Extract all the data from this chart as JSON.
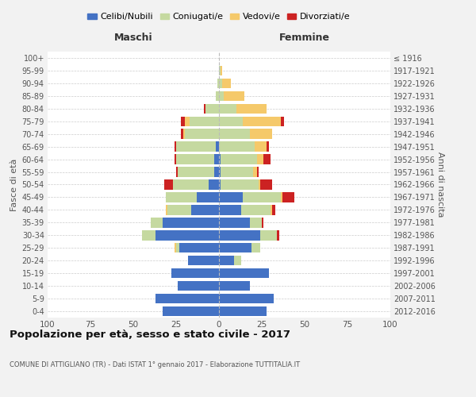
{
  "age_groups": [
    "0-4",
    "5-9",
    "10-14",
    "15-19",
    "20-24",
    "25-29",
    "30-34",
    "35-39",
    "40-44",
    "45-49",
    "50-54",
    "55-59",
    "60-64",
    "65-69",
    "70-74",
    "75-79",
    "80-84",
    "85-89",
    "90-94",
    "95-99",
    "100+"
  ],
  "birth_years": [
    "2012-2016",
    "2007-2011",
    "2002-2006",
    "1997-2001",
    "1992-1996",
    "1987-1991",
    "1982-1986",
    "1977-1981",
    "1972-1976",
    "1967-1971",
    "1962-1966",
    "1957-1961",
    "1952-1956",
    "1947-1951",
    "1942-1946",
    "1937-1941",
    "1932-1936",
    "1927-1931",
    "1922-1926",
    "1917-1921",
    "≤ 1916"
  ],
  "maschi": {
    "celibi": [
      33,
      37,
      24,
      28,
      18,
      23,
      37,
      33,
      16,
      13,
      6,
      3,
      3,
      2,
      0,
      0,
      0,
      0,
      0,
      0,
      0
    ],
    "coniugati": [
      0,
      0,
      0,
      0,
      0,
      2,
      8,
      7,
      14,
      18,
      21,
      21,
      22,
      23,
      20,
      17,
      8,
      2,
      1,
      0,
      0
    ],
    "vedovi": [
      0,
      0,
      0,
      0,
      0,
      1,
      0,
      0,
      1,
      0,
      0,
      0,
      0,
      0,
      1,
      3,
      0,
      0,
      0,
      0,
      0
    ],
    "divorziati": [
      0,
      0,
      0,
      0,
      0,
      0,
      0,
      0,
      0,
      0,
      5,
      1,
      1,
      1,
      1,
      2,
      1,
      0,
      0,
      0,
      0
    ]
  },
  "femmine": {
    "nubili": [
      28,
      32,
      18,
      29,
      9,
      19,
      24,
      18,
      13,
      14,
      1,
      1,
      1,
      0,
      0,
      0,
      0,
      0,
      0,
      0,
      0
    ],
    "coniugate": [
      0,
      0,
      0,
      0,
      4,
      5,
      10,
      7,
      17,
      22,
      22,
      19,
      21,
      21,
      18,
      14,
      10,
      3,
      2,
      1,
      0
    ],
    "vedove": [
      0,
      0,
      0,
      0,
      0,
      0,
      0,
      0,
      1,
      1,
      1,
      2,
      4,
      7,
      13,
      22,
      18,
      12,
      5,
      1,
      0
    ],
    "divorziate": [
      0,
      0,
      0,
      0,
      0,
      0,
      1,
      1,
      2,
      7,
      7,
      1,
      4,
      1,
      0,
      2,
      0,
      0,
      0,
      0,
      0
    ]
  },
  "colors": {
    "celibi_nubili": "#4472c4",
    "coniugati": "#c5d9a0",
    "vedovi": "#f5c96a",
    "divorziati": "#cc2222"
  },
  "xlim": 100,
  "title": "Popolazione per età, sesso e stato civile - 2017",
  "subtitle": "COMUNE DI ATTIGLIANO (TR) - Dati ISTAT 1° gennaio 2017 - Elaborazione TUTTITALIA.IT",
  "ylabel_left": "Fasce di età",
  "ylabel_right": "Anni di nascita",
  "xlabel_maschi": "Maschi",
  "xlabel_femmine": "Femmine",
  "legend_labels": [
    "Celibi/Nubili",
    "Coniugati/e",
    "Vedovi/e",
    "Divorziati/e"
  ],
  "bg_color": "#f2f2f2",
  "plot_bg_color": "#ffffff"
}
